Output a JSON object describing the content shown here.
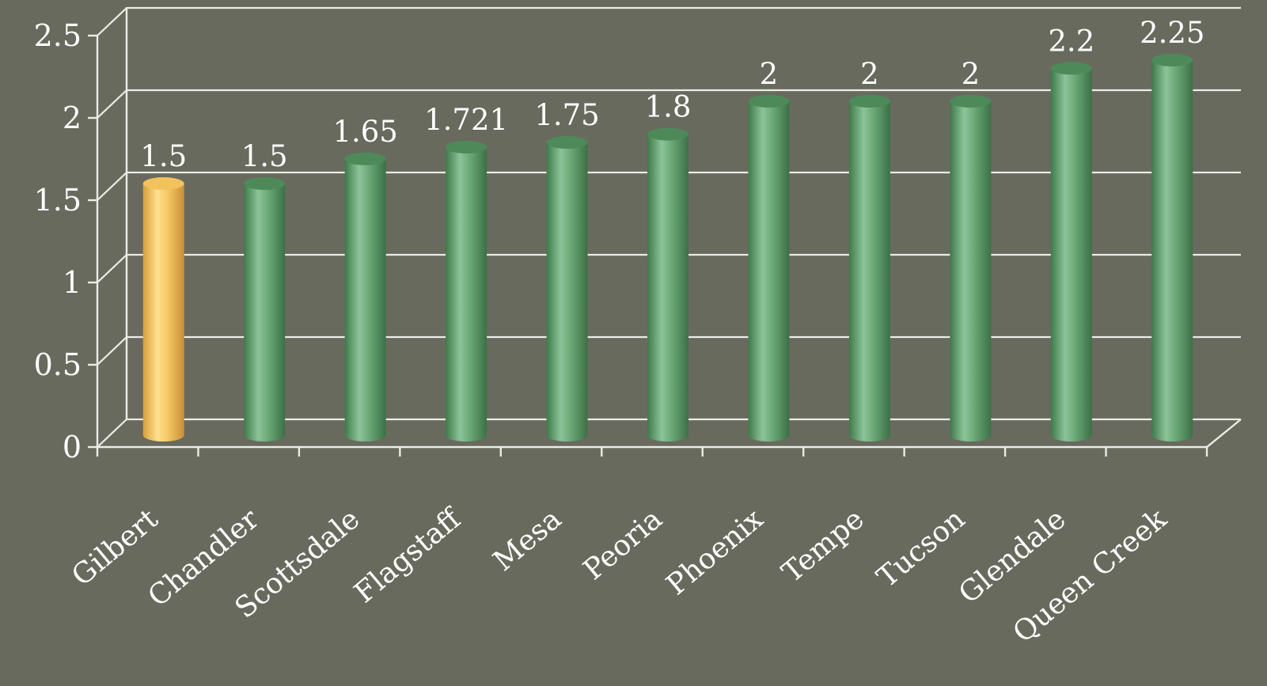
{
  "colors": {
    "background": "#696a5e",
    "highlight_bar": "#f4c35e",
    "bar": "#5e9f6a",
    "text": "#ffffff",
    "grid": "#ecece6"
  },
  "chart_data": {
    "type": "bar",
    "categories": [
      "Gilbert",
      "Chandler",
      "Scottsdale",
      "Flagstaff",
      "Mesa",
      "Peoria",
      "Phoenix",
      "Tempe",
      "Tucson",
      "Glendale",
      "Queen Creek"
    ],
    "values": [
      1.5,
      1.5,
      1.65,
      1.721,
      1.75,
      1.8,
      2,
      2,
      2,
      2.2,
      2.25
    ],
    "value_labels": [
      "1.5",
      "1.5",
      "1.65",
      "1.721",
      "1.75",
      "1.8",
      "2",
      "2",
      "2",
      "2.2",
      "2.25"
    ],
    "highlight_index": 0,
    "y_ticks": [
      0,
      0.5,
      1,
      1.5,
      2,
      2.5
    ],
    "y_tick_labels": [
      "0",
      "0.5",
      "1",
      "1.5",
      "2",
      "2.5"
    ],
    "ylim": [
      0,
      2.5
    ],
    "grid": true,
    "legend": "none",
    "style": "3d-cylinder"
  }
}
